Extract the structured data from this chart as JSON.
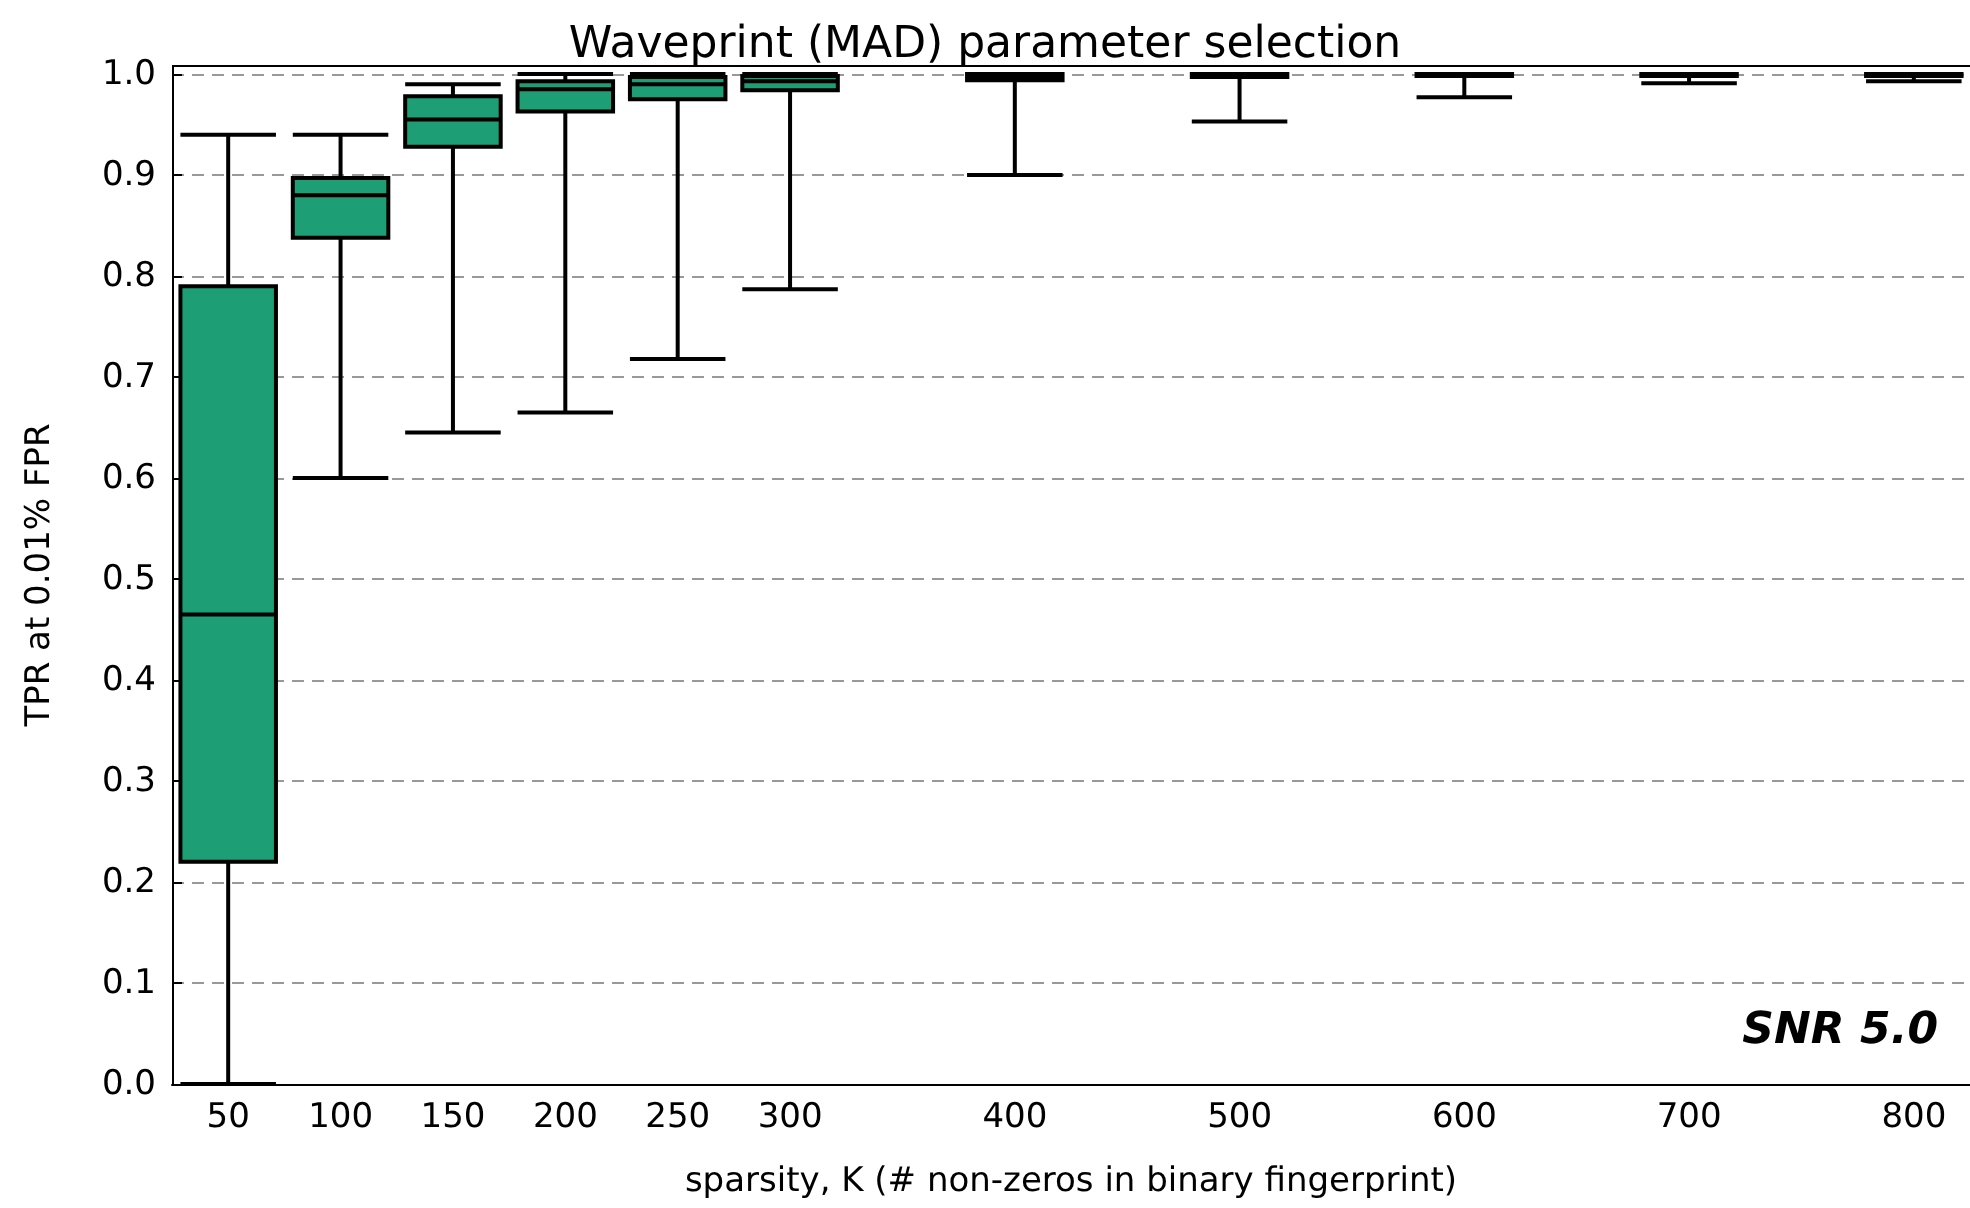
{
  "chart_data": {
    "type": "box",
    "title": "Waveprint (MAD) parameter selection",
    "xlabel": "sparsity, K (# non-zeros in binary fingerprint)",
    "ylabel": "TPR at 0.01% FPR",
    "annotations": [
      "SNR 5.0"
    ],
    "categories": [
      "50",
      "100",
      "150",
      "200",
      "250",
      "300",
      null,
      "400",
      null,
      "500",
      null,
      "600",
      null,
      "700",
      null,
      "800"
    ],
    "color": "#1e9e74",
    "boxes": [
      {
        "low": 0.0,
        "q1": 0.22,
        "median": 0.465,
        "q3": 0.79,
        "high": 0.94
      },
      {
        "low": 0.6,
        "q1": 0.838,
        "median": 0.88,
        "q3": 0.897,
        "high": 0.94
      },
      {
        "low": 0.645,
        "q1": 0.928,
        "median": 0.955,
        "q3": 0.978,
        "high": 0.99
      },
      {
        "low": 0.665,
        "q1": 0.963,
        "median": 0.985,
        "q3": 0.993,
        "high": 1.0
      },
      {
        "low": 0.718,
        "q1": 0.975,
        "median": 0.99,
        "q3": 0.997,
        "high": 1.0
      },
      {
        "low": 0.787,
        "q1": 0.984,
        "median": 0.993,
        "q3": 0.998,
        "high": 1.0
      },
      null,
      {
        "low": 0.9,
        "q1": 0.994,
        "median": 0.997,
        "q3": 1.0,
        "high": 1.0
      },
      null,
      {
        "low": 0.953,
        "q1": 0.997,
        "median": 0.999,
        "q3": 1.0,
        "high": 1.0
      },
      null,
      {
        "low": 0.977,
        "q1": 0.998,
        "median": 0.999,
        "q3": 1.0,
        "high": 1.0
      },
      null,
      {
        "low": 0.991,
        "q1": 0.998,
        "median": 1.0,
        "q3": 1.0,
        "high": 1.0
      },
      null,
      {
        "low": 0.993,
        "q1": 0.998,
        "median": 1.0,
        "q3": 1.0,
        "high": 1.0
      }
    ],
    "ylim": [
      0,
      1.008
    ],
    "yticks": [
      {
        "value": 0,
        "label": "0.0"
      },
      0.1,
      0.2,
      0.3,
      0.4,
      0.5,
      0.6,
      0.7,
      0.8,
      0.9,
      {
        "value": 1,
        "label": "1.0"
      }
    ],
    "grid": "y"
  }
}
